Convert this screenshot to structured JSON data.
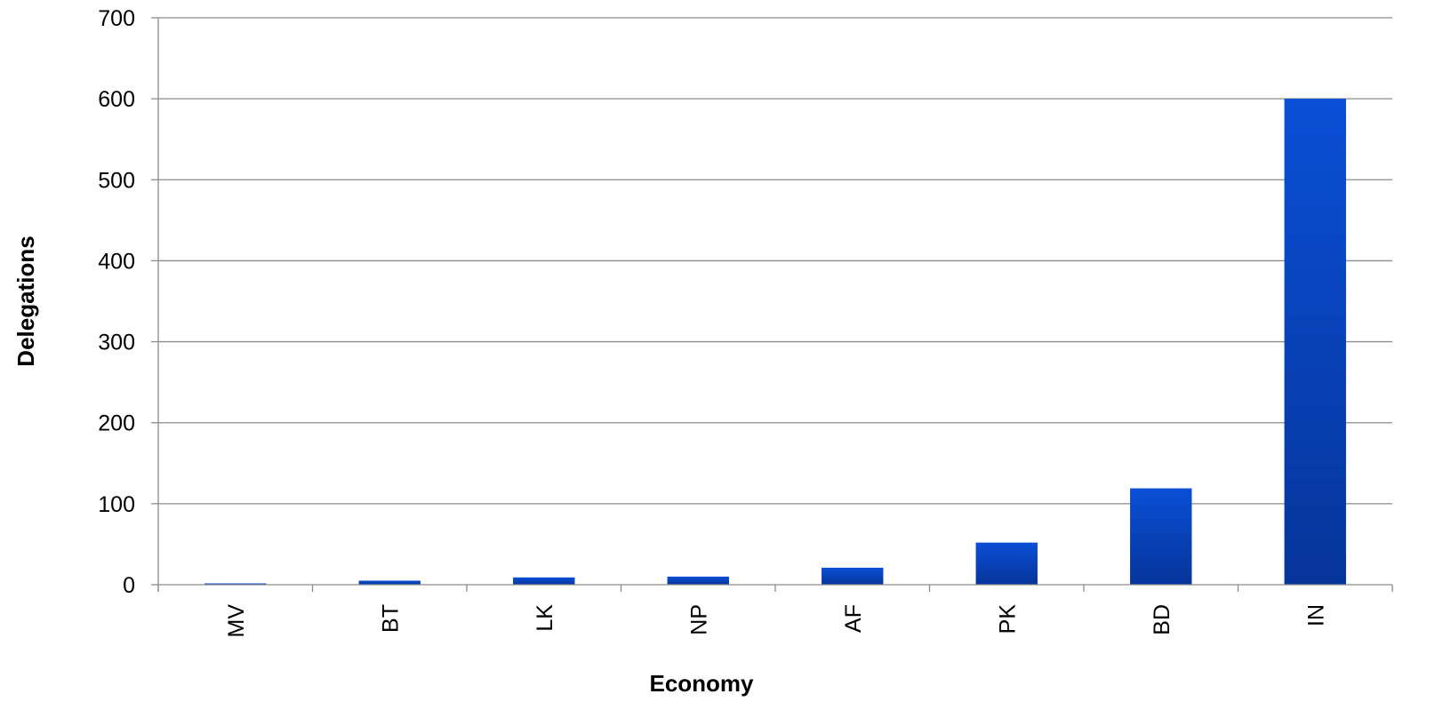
{
  "chart_data": {
    "type": "bar",
    "title": "",
    "xlabel": "Economy",
    "ylabel": "Delegations",
    "categories": [
      "MV",
      "BT",
      "LK",
      "NP",
      "AF",
      "PK",
      "BD",
      "IN"
    ],
    "values": [
      1,
      5,
      9,
      10,
      21,
      52,
      119,
      600
    ],
    "ylim": [
      0,
      700
    ],
    "yticks": [
      0,
      100,
      200,
      300,
      400,
      500,
      600,
      700
    ],
    "grid": true,
    "legend": "none",
    "colors": {
      "bar_top": "#0a4fd6",
      "bar_bottom": "#06359a",
      "gridline": "#8c8c8c"
    }
  }
}
